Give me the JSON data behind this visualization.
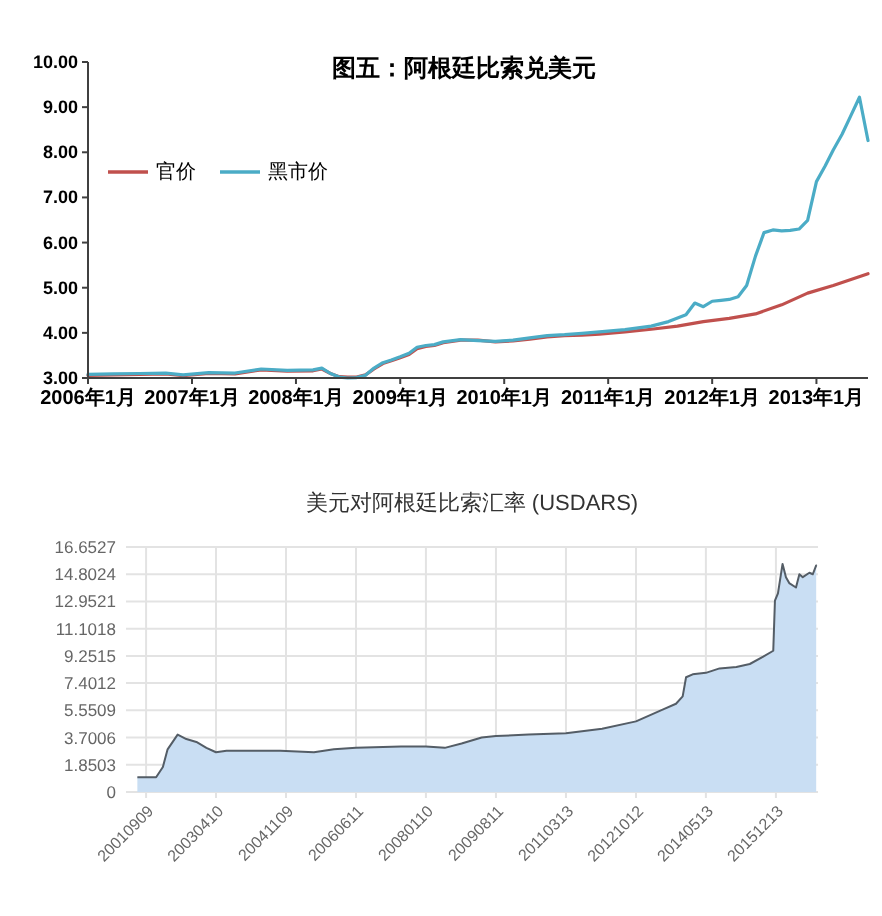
{
  "chart_data": [
    {
      "type": "line",
      "title": "图五：阿根廷比索兑美元",
      "series": [
        {
          "name": "官价",
          "color": "#c0504d",
          "x": [
            "2006-01",
            "2006-04",
            "2006-07",
            "2006-10",
            "2006-12",
            "2007-03",
            "2007-06",
            "2007-09",
            "2007-12",
            "2008-03",
            "2008-04",
            "2008-05",
            "2008-06",
            "2008-07",
            "2008-08",
            "2008-09",
            "2008-10",
            "2008-11",
            "2008-12",
            "2009-01",
            "2009-02",
            "2009-03",
            "2009-04",
            "2009-05",
            "2009-06",
            "2009-08",
            "2009-10",
            "2009-12",
            "2010-02",
            "2010-04",
            "2010-06",
            "2010-08",
            "2010-10",
            "2010-12",
            "2011-03",
            "2011-06",
            "2011-09",
            "2011-12",
            "2012-03",
            "2012-06",
            "2012-09",
            "2012-12",
            "2013-03",
            "2013-07"
          ],
          "values": [
            3.06,
            3.07,
            3.08,
            3.09,
            3.05,
            3.1,
            3.09,
            3.18,
            3.15,
            3.16,
            3.2,
            3.1,
            3.03,
            3.02,
            3.02,
            3.07,
            3.2,
            3.32,
            3.38,
            3.45,
            3.52,
            3.65,
            3.7,
            3.72,
            3.78,
            3.84,
            3.84,
            3.8,
            3.82,
            3.86,
            3.91,
            3.94,
            3.95,
            3.97,
            4.02,
            4.08,
            4.15,
            4.25,
            4.32,
            4.42,
            4.62,
            4.88,
            5.05,
            5.31
          ]
        },
        {
          "name": "黑市价",
          "color": "#4bacc6",
          "x": [
            "2006-01",
            "2006-04",
            "2006-07",
            "2006-10",
            "2006-12",
            "2007-03",
            "2007-06",
            "2007-09",
            "2007-12",
            "2008-03",
            "2008-04",
            "2008-05",
            "2008-06",
            "2008-07",
            "2008-08",
            "2008-09",
            "2008-10",
            "2008-11",
            "2008-12",
            "2009-01",
            "2009-02",
            "2009-03",
            "2009-04",
            "2009-05",
            "2009-06",
            "2009-08",
            "2009-10",
            "2009-12",
            "2010-02",
            "2010-04",
            "2010-06",
            "2010-08",
            "2010-10",
            "2010-12",
            "2011-03",
            "2011-06",
            "2011-08",
            "2011-10",
            "2011-11",
            "2011-12",
            "2012-01",
            "2012-02",
            "2012-03",
            "2012-04",
            "2012-05",
            "2012-06",
            "2012-07",
            "2012-08",
            "2012-09",
            "2012-10",
            "2012-11",
            "2012-12",
            "2013-01",
            "2013-02",
            "2013-03",
            "2013-04",
            "2013-05",
            "2013-06",
            "2013-07"
          ],
          "values": [
            3.08,
            3.09,
            3.1,
            3.11,
            3.07,
            3.12,
            3.11,
            3.2,
            3.17,
            3.18,
            3.22,
            3.1,
            3.02,
            3.0,
            3.01,
            3.06,
            3.22,
            3.34,
            3.4,
            3.47,
            3.55,
            3.68,
            3.72,
            3.74,
            3.8,
            3.85,
            3.83,
            3.81,
            3.84,
            3.89,
            3.94,
            3.96,
            3.99,
            4.02,
            4.07,
            4.15,
            4.25,
            4.4,
            4.66,
            4.58,
            4.7,
            4.72,
            4.74,
            4.8,
            5.05,
            5.7,
            6.22,
            6.28,
            6.26,
            6.27,
            6.3,
            6.49,
            7.35,
            7.7,
            8.05,
            8.4,
            8.8,
            9.22,
            8.26
          ]
        }
      ],
      "xlim": [
        "2006-01",
        "2013-07"
      ],
      "xticks": [
        {
          "value": "2006-01",
          "label": "2006年1月"
        },
        {
          "value": "2007-01",
          "label": "2007年1月"
        },
        {
          "value": "2008-01",
          "label": "2008年1月"
        },
        {
          "value": "2009-01",
          "label": "2009年1月"
        },
        {
          "value": "2010-01",
          "label": "2010年1月"
        },
        {
          "value": "2011-01",
          "label": "2011年1月"
        },
        {
          "value": "2012-01",
          "label": "2012年1月"
        },
        {
          "value": "2013-01",
          "label": "2013年1月"
        }
      ],
      "ylim": [
        3,
        10
      ],
      "yticks": [
        {
          "value": 3,
          "label": "3.00"
        },
        {
          "value": 4,
          "label": "4.00"
        },
        {
          "value": 5,
          "label": "5.00"
        },
        {
          "value": 6,
          "label": "6.00"
        },
        {
          "value": 7,
          "label": "7.00"
        },
        {
          "value": 8,
          "label": "8.00"
        },
        {
          "value": 9,
          "label": "9.00"
        },
        {
          "value": 10,
          "label": "10.00"
        }
      ],
      "legend": "left"
    },
    {
      "type": "area",
      "title": "美元对阿根廷比索汇率 (USDARS)",
      "color": "#c9def3",
      "x": [
        "2001-06-29",
        "2001-12-01",
        "2002-01-26",
        "2002-03-06",
        "2002-05-28",
        "2002-08-08",
        "2002-10-30",
        "2003-01-21",
        "2003-04-10",
        "2003-07-06",
        "2004-02-13",
        "2004-09-23",
        "2005-06-28",
        "2005-12-10",
        "2006-06-11",
        "2007-06-18",
        "2008-01-10",
        "2008-06-14",
        "2008-10-31",
        "2009-04-15",
        "2009-08-11",
        "2010-05-08",
        "2011-03-13",
        "2012-01-06",
        "2012-10-12",
        "2013-05-20",
        "2013-09-08",
        "2013-11-02",
        "2013-11-30",
        "2014-01-24",
        "2014-05-13",
        "2014-09-03",
        "2015-01-20",
        "2015-05-11",
        "2015-08-30",
        "2015-11-21",
        "2015-12-05",
        "2015-12-30",
        "2016-02-06",
        "2016-03-05",
        "2016-04-01",
        "2016-05-27",
        "2016-06-24",
        "2016-07-22",
        "2016-09-15",
        "2016-10-13",
        "2016-11-10"
      ],
      "values": [
        1.0,
        1.0,
        1.7,
        2.9,
        3.9,
        3.6,
        3.4,
        3.0,
        2.7,
        2.8,
        2.8,
        2.8,
        2.7,
        2.9,
        3.0,
        3.1,
        3.1,
        3.0,
        3.3,
        3.7,
        3.8,
        3.9,
        4.0,
        4.3,
        4.8,
        5.6,
        6.0,
        6.5,
        7.8,
        8.0,
        8.1,
        8.4,
        8.5,
        8.7,
        9.2,
        9.6,
        13.0,
        13.5,
        15.5,
        14.6,
        14.2,
        13.9,
        14.8,
        14.6,
        14.9,
        14.8,
        15.4
      ],
      "xlim": [
        "2001-03-27",
        "2016-11-25"
      ],
      "xticks": [
        {
          "value": "2001-09-09",
          "label": "20010909"
        },
        {
          "value": "2003-04-10",
          "label": "20030410"
        },
        {
          "value": "2004-11-09",
          "label": "20041109"
        },
        {
          "value": "2006-06-11",
          "label": "20060611"
        },
        {
          "value": "2008-01-10",
          "label": "20080110"
        },
        {
          "value": "2009-08-11",
          "label": "20090811"
        },
        {
          "value": "2011-03-13",
          "label": "20110313"
        },
        {
          "value": "2012-10-12",
          "label": "20121012"
        },
        {
          "value": "2014-05-13",
          "label": "20140513"
        },
        {
          "value": "2015-12-13",
          "label": "20151213"
        }
      ],
      "ylim": [
        0,
        16.6527
      ],
      "yticks": [
        0,
        1.8503,
        3.7006,
        5.5509,
        7.4012,
        9.2515,
        11.1018,
        12.9521,
        14.8024,
        16.6527
      ],
      "grid": true
    }
  ]
}
